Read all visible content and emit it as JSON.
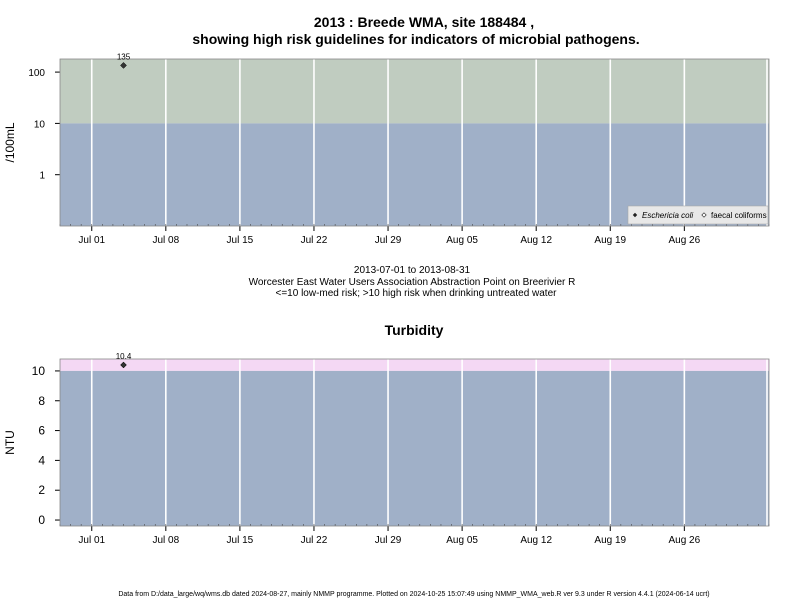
{
  "page": {
    "title_line1": "2013 : Breede WMA, site 188484 ,",
    "title_line2": "showing high risk guidelines for indicators of microbial pathogens.",
    "date_range": "2013-07-01 to 2013-08-31",
    "site_name": "Worcester East Water Users Association Abstraction Point on Breerivier R",
    "risk_note": "<=10 low-med risk; >10 high risk when drinking untreated water",
    "footer": "Data from D:/data_large/wq/wms.db dated 2024-08-27, mainly NMMP programme. Plotted on 2024-10-25 15:07:49 using NMMP_WMA_web.R ver 9.3 under R version 4.4.1 (2024-06-14 ucrt)"
  },
  "colors": {
    "low_band": "#a0b0c8",
    "high_band_micro": "#c0ccc0",
    "high_band_turb": "#f4d8f4",
    "grid": "#ffffff",
    "point": "#333333"
  },
  "chart_data": [
    {
      "type": "scatter",
      "title": "",
      "ylabel": "/100mL",
      "yscale": "log",
      "ylim": [
        0.1,
        180
      ],
      "xlim": [
        "2013-06-28",
        "2013-09-03"
      ],
      "threshold": 10,
      "yticks": [
        1,
        10,
        100
      ],
      "ytick_labels": [
        "1",
        "10",
        "100"
      ],
      "xticks": [
        "2013-07-01",
        "2013-07-08",
        "2013-07-15",
        "2013-07-22",
        "2013-07-29",
        "2013-08-05",
        "2013-08-12",
        "2013-08-19",
        "2013-08-26"
      ],
      "xtick_labels": [
        "Jul 01",
        "Jul 08",
        "Jul 15",
        "Jul 22",
        "Jul 29",
        "Aug 05",
        "Aug 12",
        "Aug 19",
        "Aug 26"
      ],
      "series": [
        {
          "name": "Eschericia coli",
          "x": [
            "2013-07-04"
          ],
          "y": [
            135
          ],
          "labels": [
            "135"
          ]
        }
      ],
      "legend": {
        "position": "bottom-right",
        "entries": [
          "Eschericia coli",
          "faecal coliforms"
        ]
      }
    },
    {
      "type": "scatter",
      "title": "Turbidity",
      "ylabel": "NTU",
      "yscale": "linear",
      "ylim": [
        -0.4,
        10.8
      ],
      "xlim": [
        "2013-06-28",
        "2013-09-03"
      ],
      "threshold": 10,
      "yticks": [
        0,
        2,
        4,
        6,
        8,
        10
      ],
      "ytick_labels": [
        "0",
        "2",
        "4",
        "6",
        "8",
        "10"
      ],
      "xticks": [
        "2013-07-01",
        "2013-07-08",
        "2013-07-15",
        "2013-07-22",
        "2013-07-29",
        "2013-08-05",
        "2013-08-12",
        "2013-08-19",
        "2013-08-26"
      ],
      "xtick_labels": [
        "Jul 01",
        "Jul 08",
        "Jul 15",
        "Jul 22",
        "Jul 29",
        "Aug 05",
        "Aug 12",
        "Aug 19",
        "Aug 26"
      ],
      "series": [
        {
          "x": [
            "2013-07-04"
          ],
          "y": [
            10.4
          ],
          "labels": [
            "10.4"
          ]
        }
      ]
    }
  ]
}
